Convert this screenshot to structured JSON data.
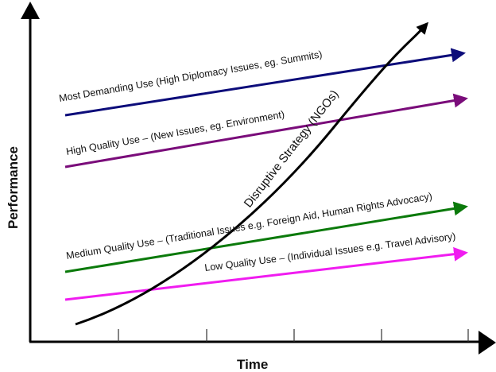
{
  "axes": {
    "x_label": "Time",
    "y_label": "Performance"
  },
  "lines": [
    {
      "label": "Most Demanding Use (High Diplomacy Issues, eg. Summits)",
      "color": "#0c0c7a"
    },
    {
      "label": "High Quality Use – (New Issues, eg. Environment)",
      "color": "#7a0c7a"
    },
    {
      "label": "Medium Quality Use – (Traditional Issues e.g. Foreign Aid, Human Rights Advocacy)",
      "color": "#0b7a0b"
    },
    {
      "label": "Low Quality Use – (Individual Issues e.g. Travel Advisory)",
      "color": "#f01cf0"
    }
  ],
  "curve": {
    "label": "Disruptive Strategy (NGOs)",
    "color": "#000000"
  }
}
